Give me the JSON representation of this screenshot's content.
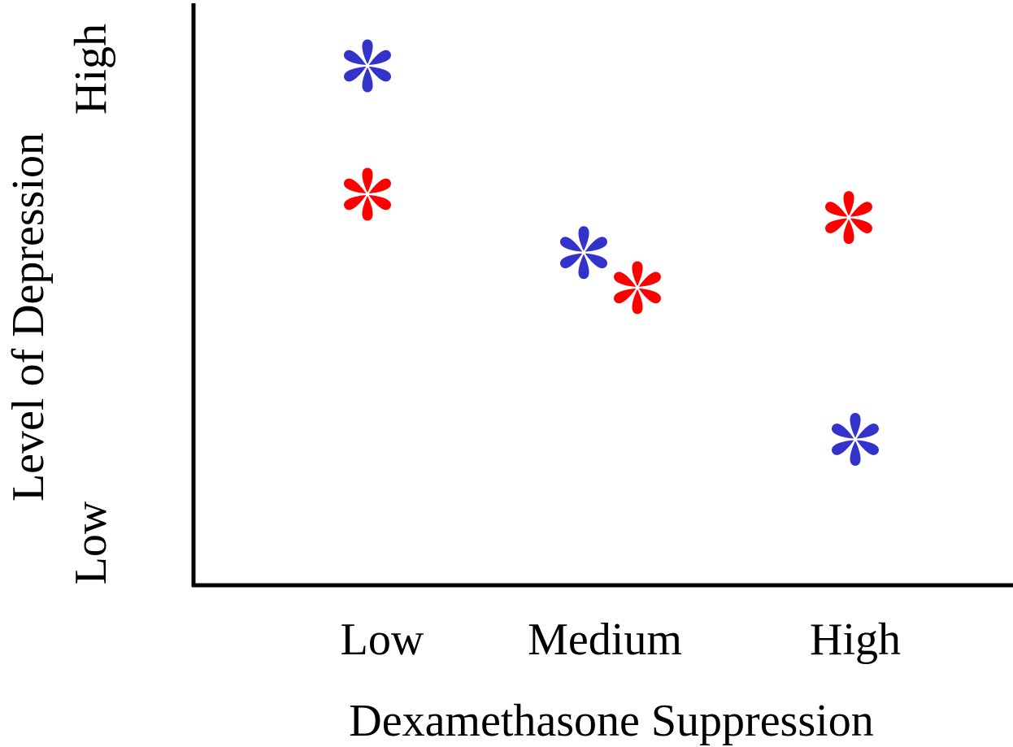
{
  "chart_data": {
    "type": "scatter",
    "title": "",
    "xlabel": "Dexamethasone Suppression",
    "ylabel": "Level of Depression",
    "x_tick_labels": [
      "Low",
      "Medium",
      "High"
    ],
    "y_tick_labels": [
      "Low",
      "High"
    ],
    "ylim": [
      0,
      10
    ],
    "marker": "asterisk",
    "grid": false,
    "series": [
      {
        "color": "#3333cc",
        "points": [
          {
            "x": "Low",
            "y": 8.9
          },
          {
            "x": "Medium",
            "y": 5.7
          },
          {
            "x": "High",
            "y": 2.5
          }
        ]
      },
      {
        "color": "#ff0000",
        "points": [
          {
            "x": "Low",
            "y": 6.7
          },
          {
            "x": "Medium",
            "y": 5.1
          },
          {
            "x": "High",
            "y": 6.3
          }
        ]
      }
    ]
  }
}
